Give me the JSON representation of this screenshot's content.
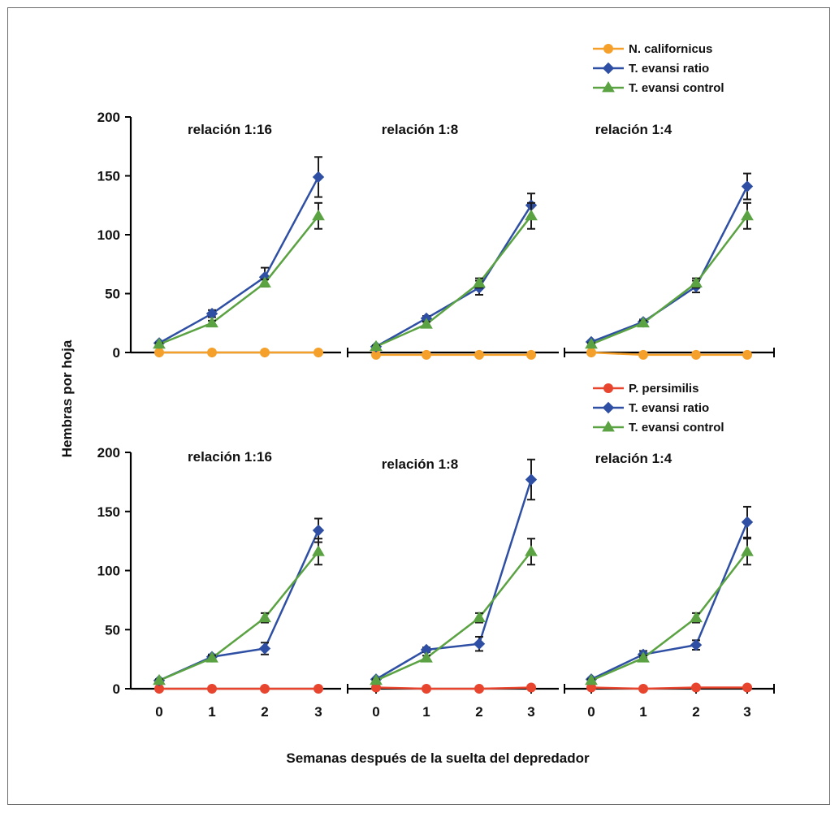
{
  "chart_data": [
    {
      "type": "line",
      "row": 1,
      "panels": [
        {
          "title": "relación 1:16",
          "x": [
            0,
            1,
            2,
            3
          ],
          "series": [
            {
              "name": "N. californicus",
              "color": "#f5a02a",
              "marker": "circle",
              "values": [
                0,
                0,
                0,
                0
              ],
              "errors": [
                0,
                0,
                0,
                0
              ]
            },
            {
              "name": "T. evansi ratio",
              "color": "#2e4fa3",
              "marker": "diamond",
              "values": [
                8,
                33,
                64,
                149
              ],
              "errors": [
                1,
                3,
                8,
                17
              ]
            },
            {
              "name": "T. evansi control",
              "color": "#5aa242",
              "marker": "triangle",
              "values": [
                7,
                25,
                59,
                116
              ],
              "errors": [
                1,
                2,
                3,
                11
              ]
            }
          ]
        },
        {
          "title": "relación 1:8",
          "x": [
            0,
            1,
            2,
            3
          ],
          "series": [
            {
              "name": "N. californicus",
              "color": "#f5a02a",
              "marker": "circle",
              "values": [
                -2,
                -2,
                -2,
                -2
              ],
              "errors": [
                0,
                0,
                0,
                0
              ]
            },
            {
              "name": "T. evansi ratio",
              "color": "#2e4fa3",
              "marker": "diamond",
              "values": [
                5,
                29,
                55,
                125
              ],
              "errors": [
                1,
                2,
                6,
                10
              ]
            },
            {
              "name": "T. evansi control",
              "color": "#5aa242",
              "marker": "triangle",
              "values": [
                5,
                24,
                59,
                116
              ],
              "errors": [
                1,
                2,
                4,
                11
              ]
            }
          ]
        },
        {
          "title": "relación 1:4",
          "x": [
            0,
            1,
            2,
            3
          ],
          "series": [
            {
              "name": "N. californicus",
              "color": "#f5a02a",
              "marker": "circle",
              "values": [
                0,
                -2,
                -2,
                -2
              ],
              "errors": [
                0,
                0,
                0,
                0
              ]
            },
            {
              "name": "T. evansi ratio",
              "color": "#2e4fa3",
              "marker": "diamond",
              "values": [
                9,
                26,
                56,
                141
              ],
              "errors": [
                1,
                2,
                5,
                11
              ]
            },
            {
              "name": "T. evansi control",
              "color": "#5aa242",
              "marker": "triangle",
              "values": [
                7,
                25,
                59,
                116
              ],
              "errors": [
                1,
                2,
                4,
                11
              ]
            }
          ]
        }
      ],
      "legend": [
        "N. californicus",
        "T. evansi ratio",
        "T. evansi control"
      ],
      "yticks": [
        0,
        50,
        100,
        150,
        200
      ],
      "ylim": [
        0,
        200
      ],
      "legend_position": "top-right"
    },
    {
      "type": "line",
      "row": 2,
      "panels": [
        {
          "title": "relación 1:16",
          "x": [
            0,
            1,
            2,
            3
          ],
          "series": [
            {
              "name": "P. persimilis",
              "color": "#e8452f",
              "marker": "circle",
              "values": [
                0,
                0,
                0,
                0
              ],
              "errors": [
                0,
                0,
                0,
                0
              ]
            },
            {
              "name": "T. evansi ratio",
              "color": "#2e4fa3",
              "marker": "diamond",
              "values": [
                7,
                27,
                34,
                134
              ],
              "errors": [
                1,
                2,
                5,
                10
              ]
            },
            {
              "name": "T. evansi control",
              "color": "#5aa242",
              "marker": "triangle",
              "values": [
                7,
                26,
                60,
                116
              ],
              "errors": [
                1,
                2,
                4,
                11
              ]
            }
          ]
        },
        {
          "title": "relación 1:8",
          "x": [
            0,
            1,
            2,
            3
          ],
          "series": [
            {
              "name": "P. persimilis",
              "color": "#e8452f",
              "marker": "circle",
              "values": [
                1,
                0,
                0,
                1
              ],
              "errors": [
                0,
                0,
                0,
                0
              ]
            },
            {
              "name": "T. evansi ratio",
              "color": "#2e4fa3",
              "marker": "diamond",
              "values": [
                8,
                33,
                38,
                177
              ],
              "errors": [
                1,
                2,
                6,
                17
              ]
            },
            {
              "name": "T. evansi control",
              "color": "#5aa242",
              "marker": "triangle",
              "values": [
                7,
                26,
                60,
                116
              ],
              "errors": [
                1,
                2,
                4,
                11
              ]
            }
          ]
        },
        {
          "title": "relación 1:4",
          "x": [
            0,
            1,
            2,
            3
          ],
          "series": [
            {
              "name": "P. persimilis",
              "color": "#e8452f",
              "marker": "circle",
              "values": [
                1,
                0,
                1,
                1
              ],
              "errors": [
                0,
                0,
                0,
                0
              ]
            },
            {
              "name": "T. evansi ratio",
              "color": "#2e4fa3",
              "marker": "diamond",
              "values": [
                8,
                29,
                37,
                141
              ],
              "errors": [
                1,
                3,
                4,
                13
              ]
            },
            {
              "name": "T. evansi control",
              "color": "#5aa242",
              "marker": "triangle",
              "values": [
                7,
                26,
                60,
                116
              ],
              "errors": [
                1,
                2,
                4,
                11
              ]
            }
          ]
        }
      ],
      "legend": [
        "P. persimilis",
        "T. evansi ratio",
        "T. evansi control"
      ],
      "yticks": [
        0,
        50,
        100,
        150,
        200
      ],
      "ylim": [
        0,
        200
      ],
      "xticks": [
        "0",
        "1",
        "2",
        "3"
      ],
      "legend_position": "top-right"
    }
  ],
  "ylabel": "Hembras por hoja",
  "xlabel": "Semanas después de la suelta del depredador"
}
